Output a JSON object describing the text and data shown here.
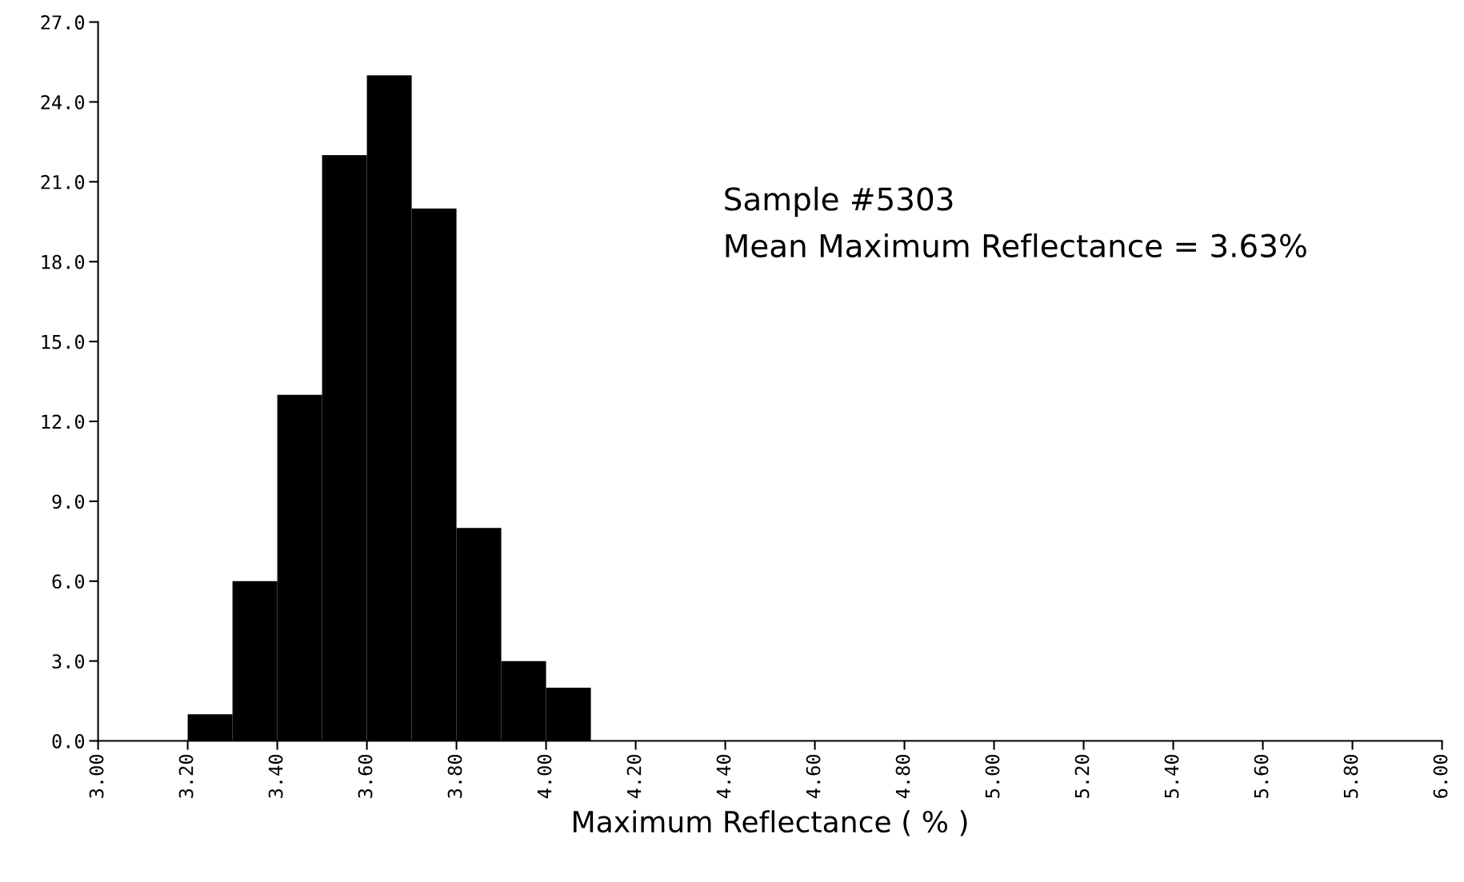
{
  "chart_data": {
    "type": "histogram",
    "xlabel": "Maximum Reflectance ( % )",
    "bins": [
      3.2,
      3.3,
      3.4,
      3.5,
      3.6,
      3.7,
      3.8,
      3.9,
      4.0,
      4.1
    ],
    "values": [
      1,
      6,
      13,
      22,
      25,
      20,
      8,
      3,
      2
    ],
    "color": "#000000",
    "xlim": [
      3.0,
      6.0
    ],
    "xticks": [
      {
        "value": 3.0,
        "label": "3.00"
      },
      {
        "value": 3.2,
        "label": "3.20"
      },
      {
        "value": 3.4,
        "label": "3.40"
      },
      {
        "value": 3.6,
        "label": "3.60"
      },
      {
        "value": 3.8,
        "label": "3.80"
      },
      {
        "value": 4.0,
        "label": "4.00"
      },
      {
        "value": 4.2,
        "label": "4.20"
      },
      {
        "value": 4.4,
        "label": "4.40"
      },
      {
        "value": 4.6,
        "label": "4.60"
      },
      {
        "value": 4.8,
        "label": "4.80"
      },
      {
        "value": 5.0,
        "label": "5.00"
      },
      {
        "value": 5.2,
        "label": "5.20"
      },
      {
        "value": 5.4,
        "label": "5.40"
      },
      {
        "value": 5.6,
        "label": "5.60"
      },
      {
        "value": 5.8,
        "label": "5.80"
      },
      {
        "value": 6.0,
        "label": "6.00"
      }
    ],
    "ylim": [
      0,
      27
    ],
    "yticks": [
      {
        "value": 0,
        "label": "0.0"
      },
      {
        "value": 3,
        "label": "3.0"
      },
      {
        "value": 6,
        "label": "6.0"
      },
      {
        "value": 9,
        "label": "9.0"
      },
      {
        "value": 12,
        "label": "12.0"
      },
      {
        "value": 15,
        "label": "15.0"
      },
      {
        "value": 18,
        "label": "18.0"
      },
      {
        "value": 21,
        "label": "21.0"
      },
      {
        "value": 24,
        "label": "24.0"
      },
      {
        "value": 27,
        "label": "27.0"
      }
    ],
    "annotations": [
      "Sample #5303",
      "Mean Maximum Reflectance = 3.63%"
    ],
    "grid": false
  }
}
